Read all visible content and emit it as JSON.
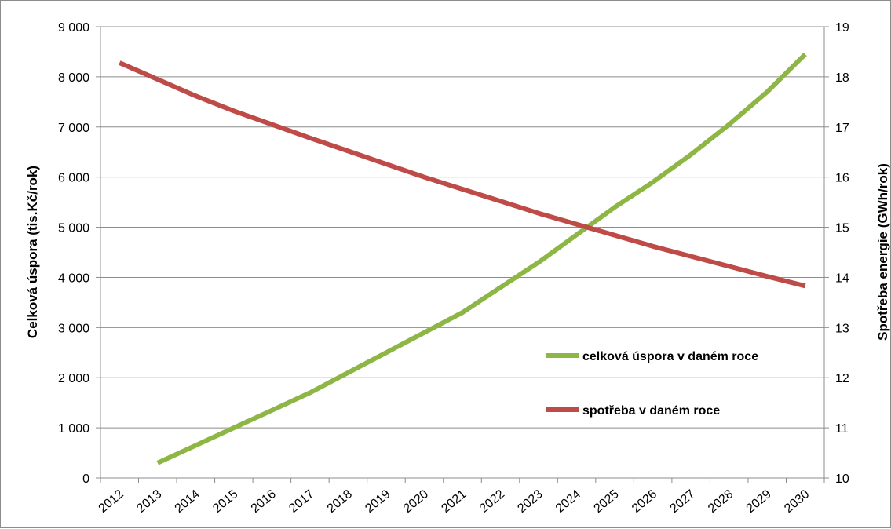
{
  "chart_data": {
    "type": "line",
    "categories": [
      "2012",
      "2013",
      "2014",
      "2015",
      "2016",
      "2017",
      "2018",
      "2019",
      "2020",
      "2021",
      "2022",
      "2023",
      "2024",
      "2025",
      "2026",
      "2027",
      "2028",
      "2029",
      "2030"
    ],
    "series": [
      {
        "name": "celková úspora v daném roce",
        "axis": "left",
        "color": "#8db645",
        "values": [
          null,
          300,
          650,
          1000,
          1350,
          1700,
          2100,
          2500,
          2900,
          3300,
          3800,
          4300,
          4850,
          5400,
          5900,
          6450,
          7050,
          7700,
          8450
        ]
      },
      {
        "name": "spotřeba v daném roce",
        "axis": "right",
        "color": "#be4b48",
        "values": [
          18.28,
          17.95,
          17.62,
          17.32,
          17.05,
          16.78,
          16.52,
          16.26,
          16.0,
          15.76,
          15.52,
          15.28,
          15.06,
          14.84,
          14.62,
          14.42,
          14.22,
          14.02,
          13.83
        ]
      }
    ],
    "y_left": {
      "label": "Celková úspora  (tis.Kč/rok)",
      "ylim": [
        0,
        9000
      ],
      "ticks": [
        "0",
        "1 000",
        "2 000",
        "3 000",
        "4 000",
        "5 000",
        "6 000",
        "7 000",
        "8 000",
        "9 000"
      ]
    },
    "y_right": {
      "label": "Spotřeba energie  (GWh/rok)",
      "ylim": [
        10,
        19
      ],
      "ticks": [
        "10",
        "11",
        "12",
        "13",
        "14",
        "15",
        "16",
        "17",
        "18",
        "19"
      ]
    },
    "grid": "horizontal",
    "legend_position": "center-right"
  }
}
